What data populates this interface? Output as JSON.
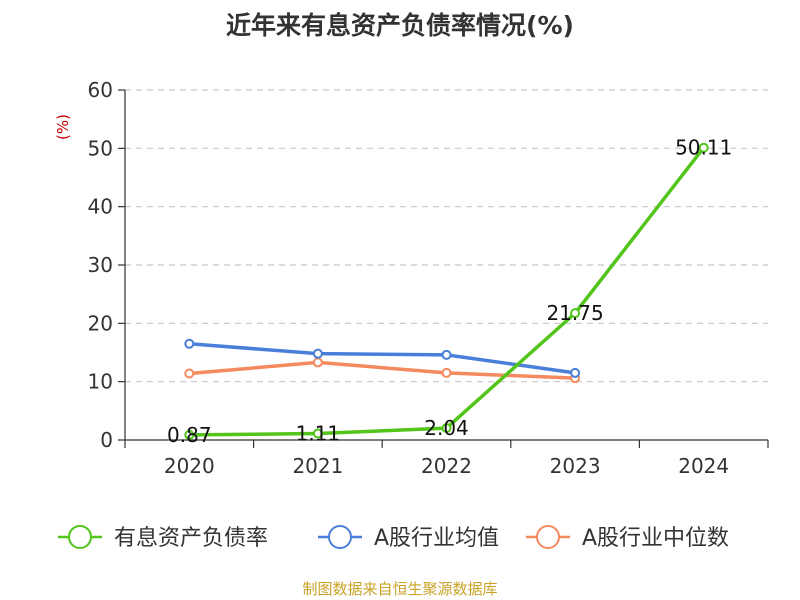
{
  "chart_data": {
    "type": "line",
    "title": "近年来有息资产负债率情况(%)",
    "y_unit": "(%)",
    "categories": [
      "2020",
      "2021",
      "2022",
      "2023",
      "2024"
    ],
    "ylim": [
      0,
      60
    ],
    "yticks": [
      0,
      10,
      20,
      30,
      40,
      50,
      60
    ],
    "grid": true,
    "legend_position": "bottom",
    "series": [
      {
        "name": "有息资产负债率",
        "color": "#52c41a",
        "values": [
          0.87,
          1.11,
          2.04,
          21.75,
          50.11
        ],
        "labels": [
          "0.87",
          "1.11",
          "2.04",
          "21.75",
          "50.11"
        ],
        "show_labels": true
      },
      {
        "name": "A股行业均值",
        "color": "#4a7fd9",
        "values": [
          16.5,
          14.8,
          14.6,
          11.5,
          null
        ],
        "show_labels": false
      },
      {
        "name": "A股行业中位数",
        "color": "#f5895f",
        "values": [
          11.4,
          13.3,
          11.5,
          10.6,
          null
        ],
        "show_labels": false
      }
    ]
  },
  "source": "制图数据来自恒生聚源数据库"
}
